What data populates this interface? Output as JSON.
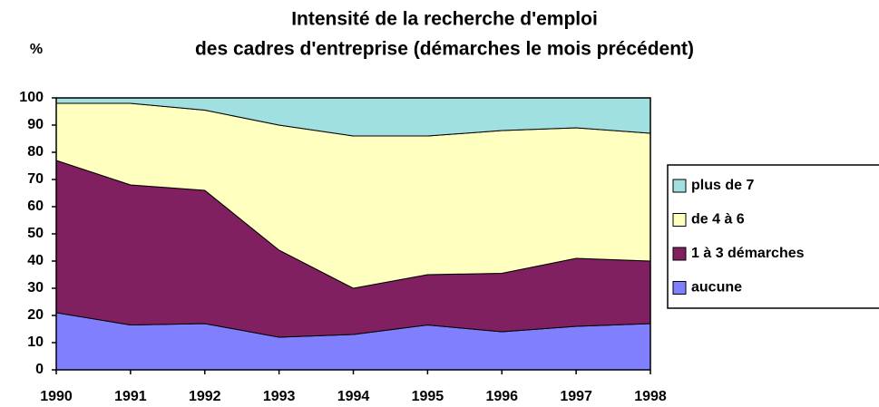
{
  "chart_data": {
    "type": "stacked_area",
    "title": [
      "Intensité de la recherche d'emploi",
      "des cadres d'entreprise (démarches le mois précédent)"
    ],
    "y_label": "%",
    "x": [
      1990,
      1991,
      1992,
      1993,
      1994,
      1995,
      1996,
      1997,
      1998
    ],
    "xlim": [
      1990,
      1998
    ],
    "xticks": [
      1990,
      1991,
      1992,
      1993,
      1994,
      1995,
      1996,
      1997,
      1998
    ],
    "ylim": [
      0,
      100
    ],
    "yticks": [
      0,
      10,
      20,
      30,
      40,
      50,
      60,
      70,
      80,
      90,
      100
    ],
    "series": [
      {
        "name": "aucune",
        "color": "#8080ff",
        "values": [
          21,
          16.5,
          17,
          12,
          13,
          16.5,
          14,
          16,
          17
        ]
      },
      {
        "name": "1 à 3 démarches",
        "color": "#802060",
        "values": [
          56,
          51.5,
          49,
          32,
          17,
          18.5,
          21.5,
          25,
          23
        ]
      },
      {
        "name": "de 4 à 6",
        "color": "#ffffc0",
        "values": [
          21,
          30,
          29.5,
          46,
          56,
          51,
          52.5,
          48,
          47
        ]
      },
      {
        "name": "plus de 7",
        "color": "#a0e0e0",
        "values": [
          2,
          2,
          4.5,
          10,
          14,
          14,
          12,
          11,
          13
        ]
      }
    ]
  }
}
